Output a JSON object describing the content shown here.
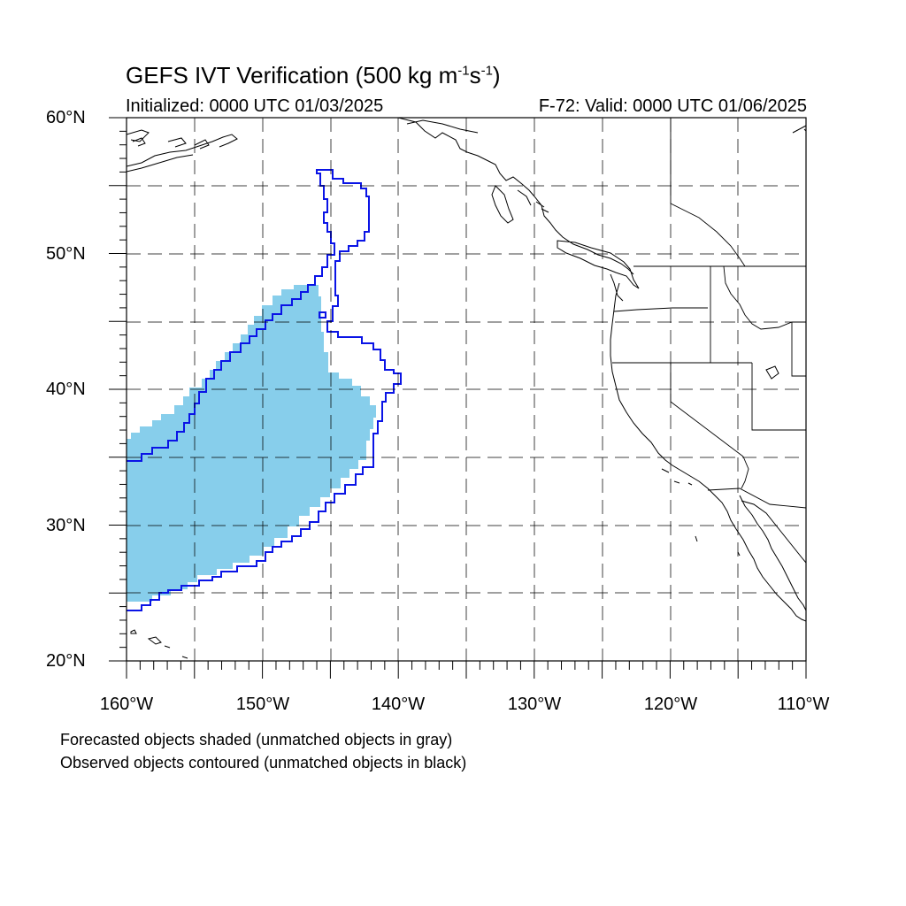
{
  "title": {
    "main": "GEFS IVT Verification (500 kg m",
    "sup1": "-1",
    "mid": "s",
    "sup2": "-1",
    "end": ")"
  },
  "subtitle": {
    "left": "Initialized: 0000 UTC 01/03/2025",
    "right": "F-72: Valid: 0000 UTC 01/06/2025"
  },
  "axes": {
    "lat_labels": [
      "60°N",
      "50°N",
      "40°N",
      "30°N",
      "20°N"
    ],
    "lon_labels": [
      "160°W",
      "150°W",
      "140°W",
      "130°W",
      "120°W",
      "110°W"
    ],
    "lat_range": [
      20,
      60
    ],
    "lon_range": [
      -160,
      -110
    ],
    "grid": true
  },
  "legend_notes": {
    "line1": "Forecasted objects shaded (unmatched objects in gray)",
    "line2": "Observed objects contoured (unmatched objects in black)"
  },
  "colors": {
    "forecast_fill": "#87ceeb",
    "observed_contour": "#0a14e6"
  }
}
